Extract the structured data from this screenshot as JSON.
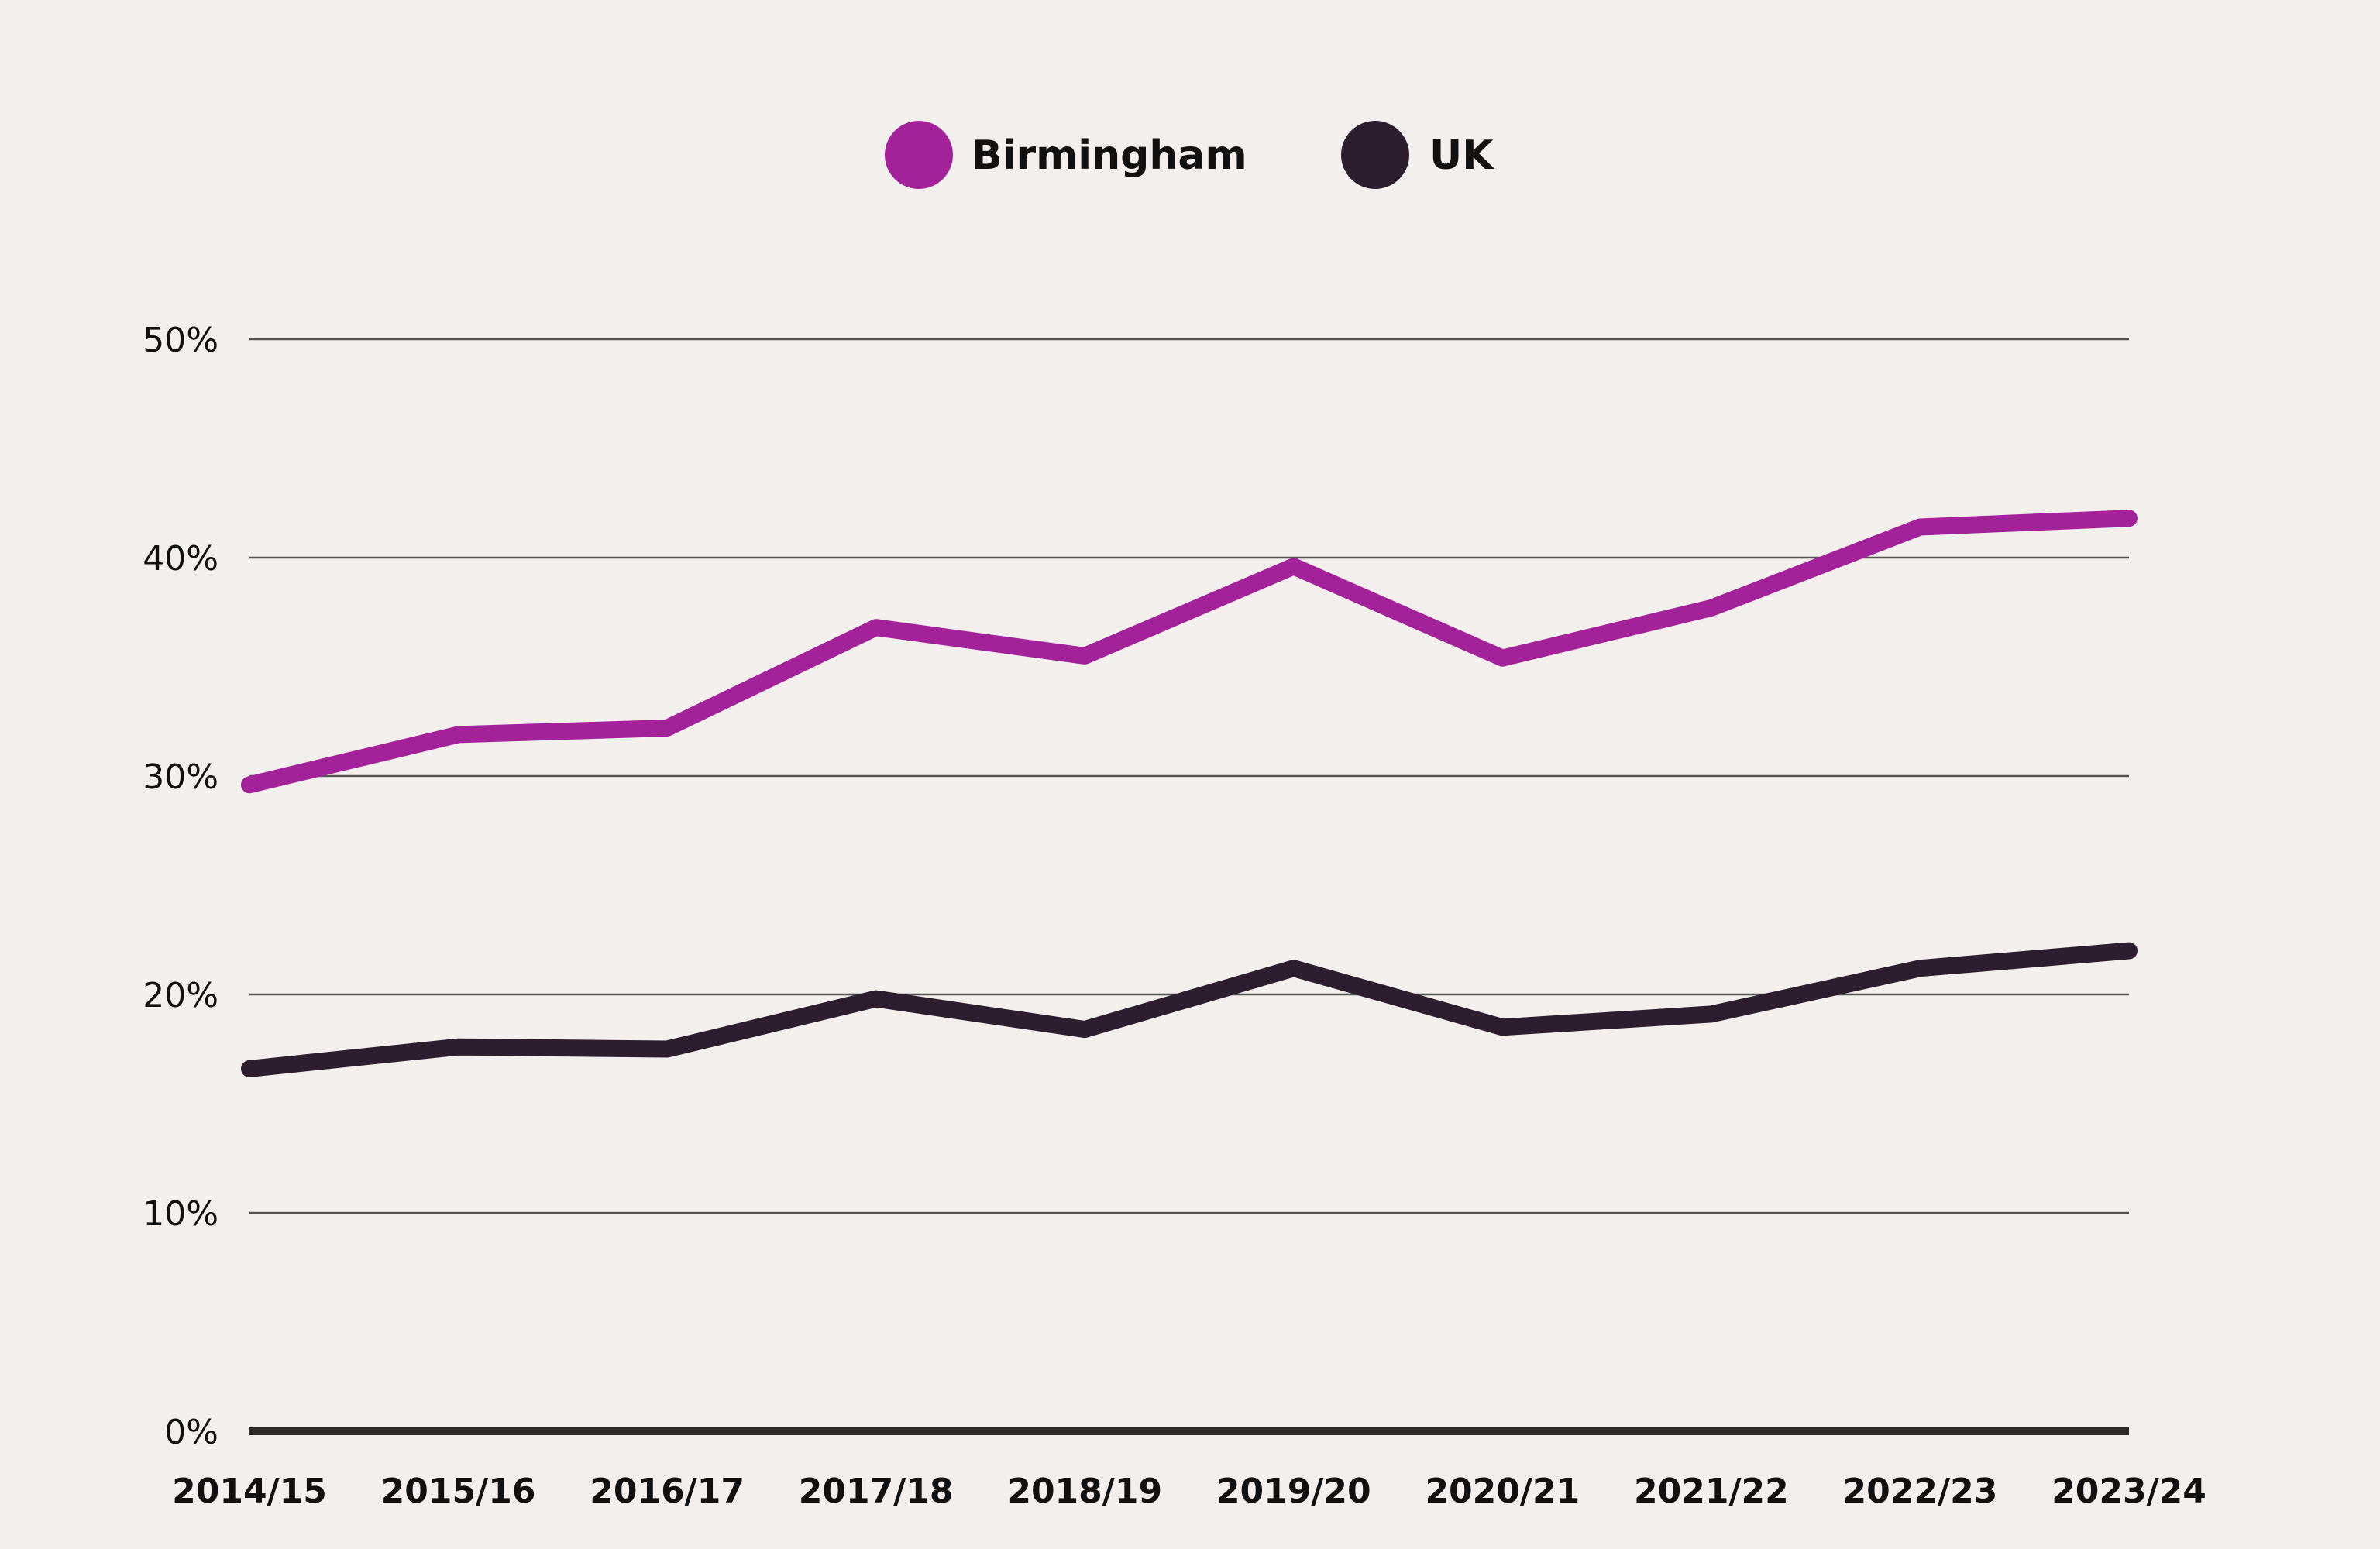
{
  "chart_data": {
    "type": "line",
    "categories": [
      "2014/15",
      "2015/16",
      "2016/17",
      "2017/18",
      "2018/19",
      "2019/20",
      "2020/21",
      "2021/22",
      "2022/23",
      "2023/24"
    ],
    "series": [
      {
        "name": "Birmingham",
        "color": "#a3229a",
        "values": [
          29.6,
          31.9,
          32.2,
          36.8,
          35.5,
          39.6,
          35.4,
          37.7,
          41.4,
          41.8
        ]
      },
      {
        "name": "UK",
        "color": "#2d1e2f",
        "values": [
          16.6,
          17.6,
          17.5,
          19.8,
          18.4,
          21.2,
          18.5,
          19.1,
          21.2,
          22.0
        ]
      }
    ],
    "yticks": [
      "0%",
      "10%",
      "20%",
      "30%",
      "40%",
      "50%"
    ],
    "ylim": [
      0,
      50
    ],
    "grid": true,
    "legend": "top-center",
    "title": "",
    "xlabel": "",
    "ylabel": ""
  }
}
